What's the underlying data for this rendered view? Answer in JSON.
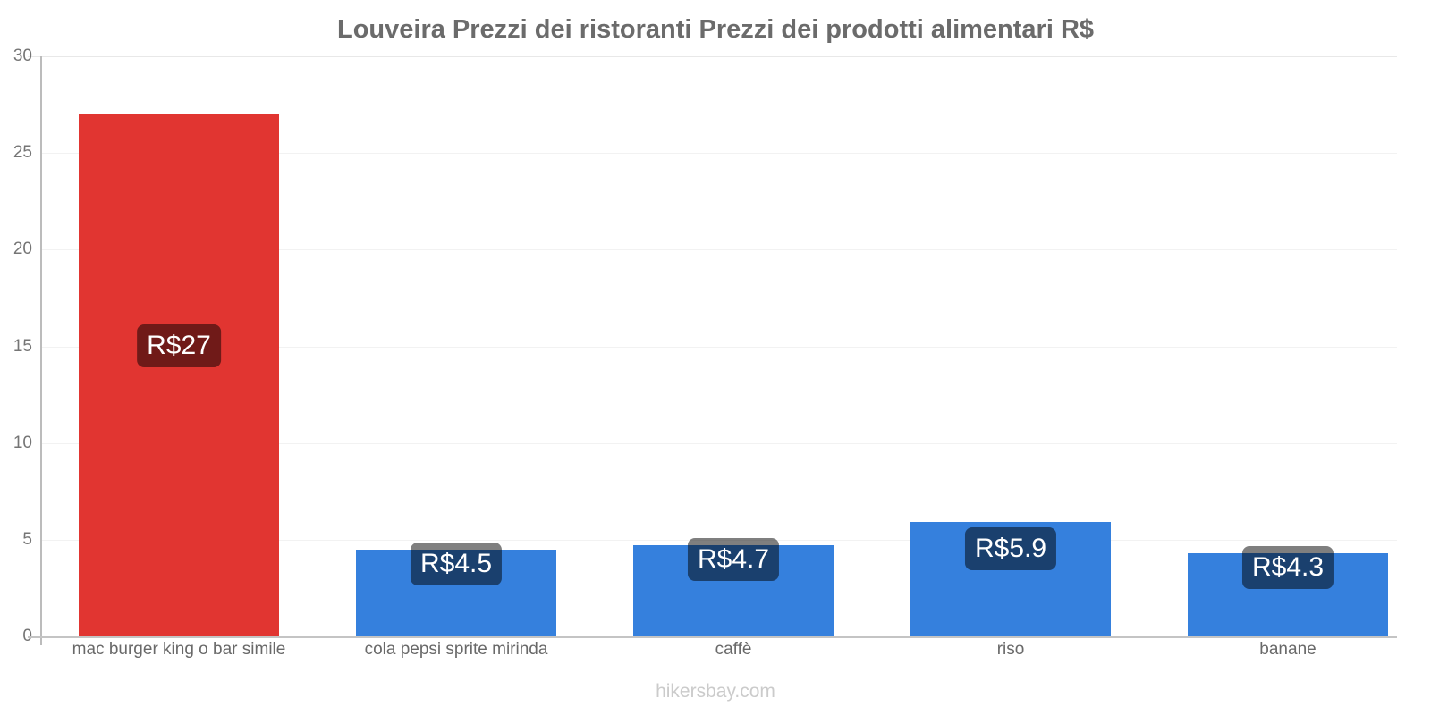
{
  "title": "Louveira Prezzi dei ristoranti Prezzi dei prodotti alimentari R$",
  "watermark": "hikersbay.com",
  "chart_data": {
    "type": "bar",
    "title": "Louveira Prezzi dei ristoranti Prezzi dei prodotti alimentari R$",
    "categories": [
      "mac burger king o bar simile",
      "cola pepsi sprite mirinda",
      "caffè",
      "riso",
      "banane"
    ],
    "values": [
      27,
      4.5,
      4.7,
      5.9,
      4.3
    ],
    "data_labels": [
      "R$27",
      "R$4.5",
      "R$4.7",
      "R$5.9",
      "R$4.3"
    ],
    "bar_colors": [
      "#e13531",
      "#3580dd",
      "#3580dd",
      "#3580dd",
      "#3580dd"
    ],
    "label_box_color": "rgba(0,0,0,0.5)",
    "label_text_color": "#ffffff",
    "currency_symbol": "R$",
    "ylim": [
      0,
      30
    ],
    "yticks": [
      0,
      5,
      10,
      15,
      20,
      25,
      30
    ],
    "grid": "horizontal",
    "legend": "none",
    "xlabel": "",
    "ylabel": ""
  }
}
